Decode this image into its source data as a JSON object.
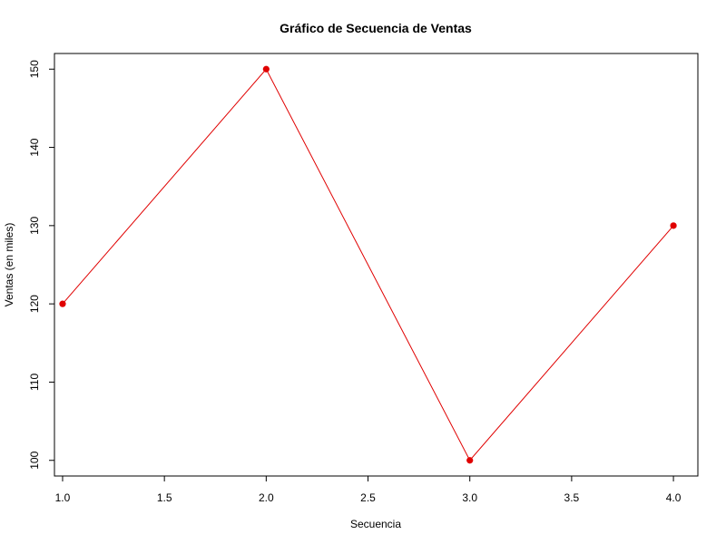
{
  "chart_data": {
    "type": "line",
    "title": "Gráfico de Secuencia de Ventas",
    "xlabel": "Secuencia",
    "ylabel": "Ventas (en miles)",
    "x": [
      1,
      2,
      3,
      4
    ],
    "series": [
      {
        "values": [
          120,
          150,
          100,
          130
        ],
        "color": "#e00000"
      }
    ],
    "xlim": [
      0.96,
      4.12
    ],
    "ylim": [
      98,
      152
    ],
    "x_ticks": [
      1.0,
      1.5,
      2.0,
      2.5,
      3.0,
      3.5,
      4.0
    ],
    "x_tick_labels": [
      "1.0",
      "1.5",
      "2.0",
      "2.5",
      "3.0",
      "3.5",
      "4.0"
    ],
    "y_ticks": [
      100,
      110,
      120,
      130,
      140,
      150
    ],
    "y_tick_labels": [
      "100",
      "110",
      "120",
      "130",
      "140",
      "150"
    ],
    "grid": false,
    "legend": "none",
    "marker": "filled-circle"
  }
}
